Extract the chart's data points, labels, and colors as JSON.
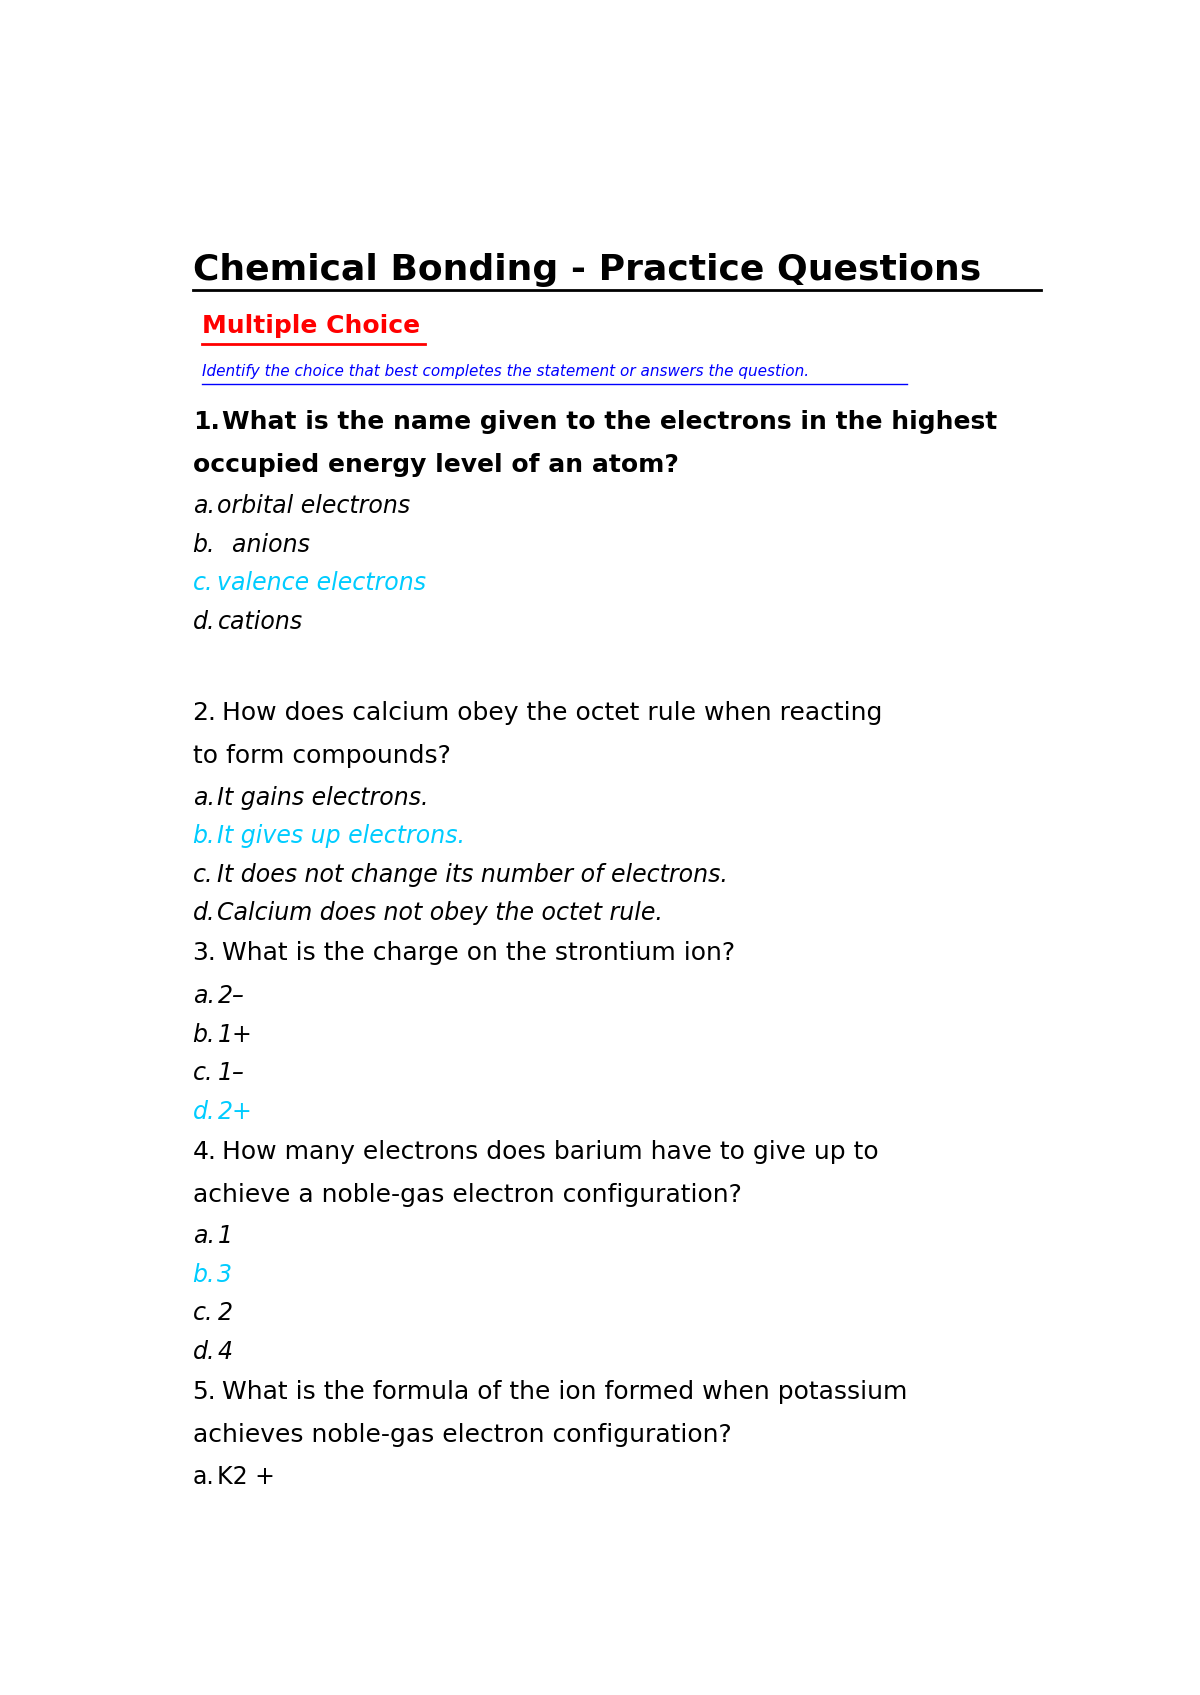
{
  "title": "Chemical Bonding - Practice Questions",
  "section": "Multiple Choice",
  "instruction": "Identify the choice that best completes the statement or answers the question.",
  "background_color": "#ffffff",
  "title_color": "#000000",
  "section_color": "#ff0000",
  "instruction_color": "#0000ff",
  "cyan_color": "#00ccff",
  "black_color": "#000000",
  "questions": [
    {
      "number": "1.",
      "bold": true,
      "lines": [
        "What is the name given to the electrons in the highest",
        "occupied energy level of an atom?"
      ],
      "choices": [
        {
          "label": "a.",
          "text": "orbital electrons",
          "color": "#000000",
          "italic": true
        },
        {
          "label": "b.",
          "text": "  anions",
          "color": "#000000",
          "italic": true
        },
        {
          "label": "c.",
          "text": "valence electrons",
          "color": "#00ccff",
          "italic": true
        },
        {
          "label": "d.",
          "text": "cations",
          "color": "#000000",
          "italic": true
        }
      ]
    },
    {
      "number": "2.",
      "bold": false,
      "lines": [
        "How does calcium obey the octet rule when reacting",
        "to form compounds?"
      ],
      "choices": [
        {
          "label": "a.",
          "text": "It gains electrons.",
          "color": "#000000",
          "italic": true
        },
        {
          "label": "b.",
          "text": "It gives up electrons.",
          "color": "#00ccff",
          "italic": true
        },
        {
          "label": "c.",
          "text": "It does not change its number of electrons.",
          "color": "#000000",
          "italic": true
        },
        {
          "label": "d.",
          "text": "Calcium does not obey the octet rule.",
          "color": "#000000",
          "italic": true
        }
      ]
    },
    {
      "number": "3.",
      "bold": false,
      "lines": [
        "What is the charge on the strontium ion?"
      ],
      "choices": [
        {
          "label": "a.",
          "text": "2–",
          "color": "#000000",
          "italic": true
        },
        {
          "label": "b.",
          "text": "1+",
          "color": "#000000",
          "italic": true
        },
        {
          "label": "c.",
          "text": "1–",
          "color": "#000000",
          "italic": true
        },
        {
          "label": "d.",
          "text": "2+",
          "color": "#00ccff",
          "italic": true
        }
      ]
    },
    {
      "number": "4.",
      "bold": false,
      "lines": [
        "How many electrons does barium have to give up to",
        "achieve a noble-gas electron configuration?"
      ],
      "choices": [
        {
          "label": "a.",
          "text": "1",
          "color": "#000000",
          "italic": true
        },
        {
          "label": "b.",
          "text": "3",
          "color": "#00ccff",
          "italic": true
        },
        {
          "label": "c.",
          "text": "2",
          "color": "#000000",
          "italic": true
        },
        {
          "label": "d.",
          "text": "4",
          "color": "#000000",
          "italic": true
        }
      ]
    },
    {
      "number": "5.",
      "bold": false,
      "lines": [
        "What is the formula of the ion formed when potassium",
        "achieves noble-gas electron configuration?"
      ],
      "choices": [
        {
          "label": "a.",
          "text": "K2 +",
          "color": "#000000",
          "italic": false
        }
      ]
    }
  ]
}
